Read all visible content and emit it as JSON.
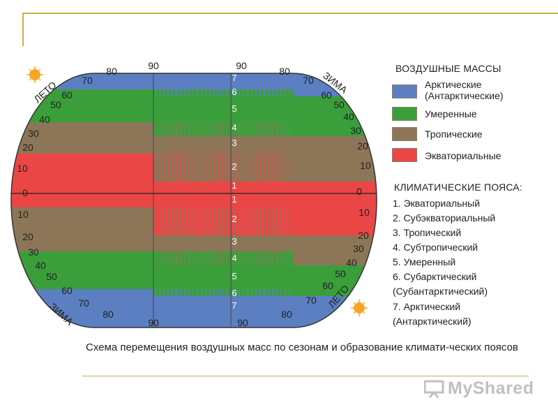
{
  "diagram": {
    "belt_numbers_top": [
      "7",
      "6",
      "5",
      "4",
      "3",
      "2",
      "1"
    ],
    "belt_numbers_bottom": [
      "1",
      "2",
      "3",
      "4",
      "5",
      "6",
      "7"
    ],
    "left_lats": [
      "90",
      "80",
      "70",
      "60",
      "50",
      "40",
      "30",
      "20",
      "10",
      "0",
      "10",
      "20",
      "30",
      "40",
      "50",
      "60",
      "70",
      "80",
      "90"
    ],
    "right_lats": [
      "90",
      "80",
      "70",
      "60",
      "50",
      "40",
      "30",
      "20",
      "10",
      "0",
      "10",
      "20",
      "30",
      "40",
      "50",
      "60",
      "70",
      "80",
      "90"
    ],
    "season_left_top": "ЛЕТО",
    "season_left_bottom": "ЗИМА",
    "season_right_top": "ЗИМА",
    "season_right_bottom": "ЛЕТО",
    "colors": {
      "arctic": "#5b7fc1",
      "temperate": "#3a9f3a",
      "tropical": "#8d7658",
      "equatorial": "#ea4646",
      "sun": "#f5a623",
      "frame": "#c9b245"
    }
  },
  "legend": {
    "air_masses_title": "ВОЗДУШНЫЕ МАССЫ",
    "items": [
      {
        "label": "Арктические\n(Антарктические)",
        "color": "#5b7fc1"
      },
      {
        "label": "Умеренные",
        "color": "#3a9f3a"
      },
      {
        "label": "Тропические",
        "color": "#8d7658"
      },
      {
        "label": "Экваториальные",
        "color": "#ea4646"
      }
    ],
    "belts_title": "КЛИМАТИЧЕСКИЕ ПОЯСА:",
    "belts": [
      "1. Экваториальный",
      "2. Субэкваториальный",
      "3. Тропический",
      "4. Субтропический",
      "5. Умеренный",
      "6. Субарктический",
      "(Субантарктический)",
      "7. Арктический",
      "(Антарктический)"
    ]
  },
  "caption": "Схема перемещения воздушных масс по сезонам и образование климати-ческих поясов",
  "watermark": "MyShared"
}
